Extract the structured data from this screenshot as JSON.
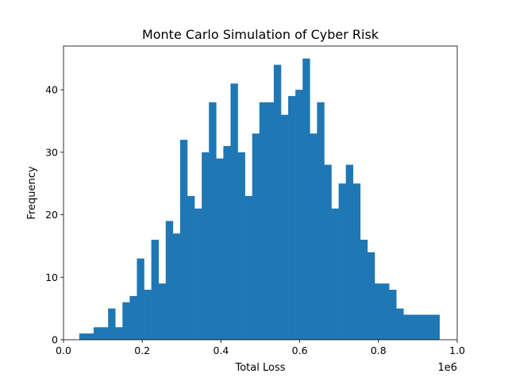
{
  "chart_data": {
    "type": "bar",
    "title": "Monte Carlo Simulation of Cyber Risk",
    "xlabel": "Total Loss",
    "ylabel": "Frequency",
    "x_offset_text": "1e6",
    "xlim": [
      0.0,
      1.0
    ],
    "ylim": [
      0,
      47
    ],
    "x_ticks": [
      0.0,
      0.2,
      0.4,
      0.6,
      0.8,
      1.0
    ],
    "x_tick_labels": [
      "0.0",
      "0.2",
      "0.4",
      "0.6",
      "0.8",
      "1.0"
    ],
    "y_ticks": [
      0,
      10,
      20,
      30,
      40
    ],
    "y_tick_labels": [
      "0",
      "10",
      "20",
      "30",
      "40"
    ],
    "grid": false,
    "bar_color": "#1f77b4",
    "bin_start": 0.04,
    "bin_width": 0.0183,
    "counts": [
      1,
      1,
      2,
      2,
      5,
      2,
      6,
      7,
      13,
      8,
      16,
      9,
      19,
      17,
      32,
      23,
      21,
      30,
      38,
      29,
      31,
      41,
      30,
      23,
      33,
      38,
      38,
      44,
      36,
      39,
      40,
      45,
      33,
      38,
      28,
      21,
      25,
      28,
      25,
      16,
      14,
      9,
      9,
      8,
      5,
      4,
      4,
      4,
      4,
      4
    ]
  }
}
